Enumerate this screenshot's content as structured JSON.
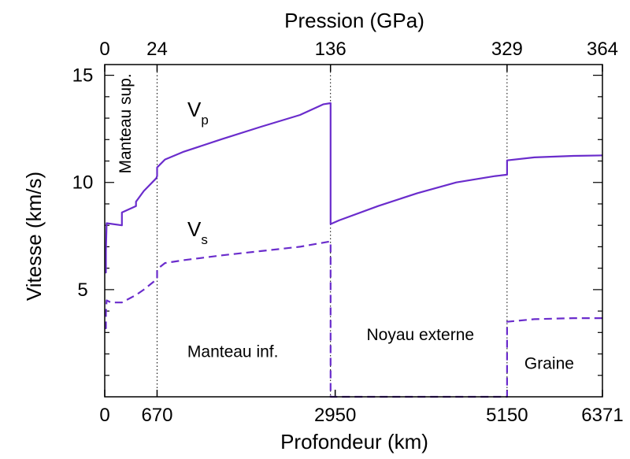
{
  "chart_data": {
    "type": "line",
    "title": "",
    "xlabel": "Profondeur (km)",
    "ylabel": "Vitesse (km/s)",
    "top_axis_label": "Pression (GPa)",
    "xlim": [
      0,
      6371
    ],
    "ylim": [
      0,
      15.5
    ],
    "x_ticks": [
      0,
      670,
      2950,
      5150,
      6371
    ],
    "x_tick_labels": [
      "0",
      "670",
      "2950",
      "5150",
      "6371"
    ],
    "top_ticks": [
      {
        "depth": 0,
        "label": "0"
      },
      {
        "depth": 670,
        "label": "24"
      },
      {
        "depth": 2890,
        "label": "136"
      },
      {
        "depth": 5150,
        "label": "329"
      },
      {
        "depth": 6371,
        "label": "364"
      }
    ],
    "y_ticks": [
      5,
      10,
      15
    ],
    "y_tick_labels": [
      "5",
      "10",
      "15"
    ],
    "boundaries": [
      670,
      2890,
      5150
    ],
    "series": [
      {
        "name": "Vp",
        "label_main": "V",
        "label_sub": "p",
        "color": "#6a2ccc",
        "dash": "solid",
        "points": [
          [
            0,
            5.8
          ],
          [
            15,
            5.8
          ],
          [
            15,
            6.8
          ],
          [
            24,
            8.1
          ],
          [
            220,
            8.0
          ],
          [
            220,
            8.6
          ],
          [
            400,
            8.9
          ],
          [
            400,
            9.1
          ],
          [
            500,
            9.6
          ],
          [
            660,
            10.2
          ],
          [
            670,
            10.3
          ],
          [
            670,
            10.7
          ],
          [
            771,
            11.07
          ],
          [
            1000,
            11.42
          ],
          [
            1500,
            12.02
          ],
          [
            2000,
            12.6
          ],
          [
            2500,
            13.15
          ],
          [
            2800,
            13.65
          ],
          [
            2891,
            13.7
          ],
          [
            2891,
            8.06
          ],
          [
            3000,
            8.23
          ],
          [
            3500,
            8.9
          ],
          [
            4000,
            9.5
          ],
          [
            4500,
            10.0
          ],
          [
            5000,
            10.3
          ],
          [
            5150,
            10.36
          ],
          [
            5150,
            11.03
          ],
          [
            5500,
            11.17
          ],
          [
            6000,
            11.24
          ],
          [
            6371,
            11.26
          ]
        ]
      },
      {
        "name": "Vs",
        "label_main": "V",
        "label_sub": "s",
        "color": "#6a2ccc",
        "dash": "dashed",
        "points": [
          [
            0,
            3.2
          ],
          [
            15,
            3.2
          ],
          [
            15,
            3.9
          ],
          [
            24,
            4.5
          ],
          [
            80,
            4.4
          ],
          [
            220,
            4.4
          ],
          [
            400,
            4.75
          ],
          [
            500,
            5.0
          ],
          [
            670,
            5.5
          ],
          [
            670,
            5.95
          ],
          [
            771,
            6.24
          ],
          [
            1000,
            6.37
          ],
          [
            1500,
            6.6
          ],
          [
            2000,
            6.8
          ],
          [
            2500,
            7.0
          ],
          [
            2891,
            7.25
          ],
          [
            2891,
            0.0
          ],
          [
            5150,
            0.0
          ],
          [
            5150,
            3.5
          ],
          [
            5500,
            3.62
          ],
          [
            6000,
            3.67
          ],
          [
            6371,
            3.67
          ]
        ]
      }
    ],
    "annotations": [
      {
        "text": "Manteau sup.",
        "depth": 335,
        "vel": 12.75,
        "rotate": true
      },
      {
        "text": "Manteau inf.",
        "depth": 1640,
        "vel": 1.85
      },
      {
        "text": "Noyau externe",
        "depth": 4040,
        "vel": 2.65
      },
      {
        "text": "Graine",
        "depth": 5690,
        "vel": 1.3
      }
    ]
  }
}
